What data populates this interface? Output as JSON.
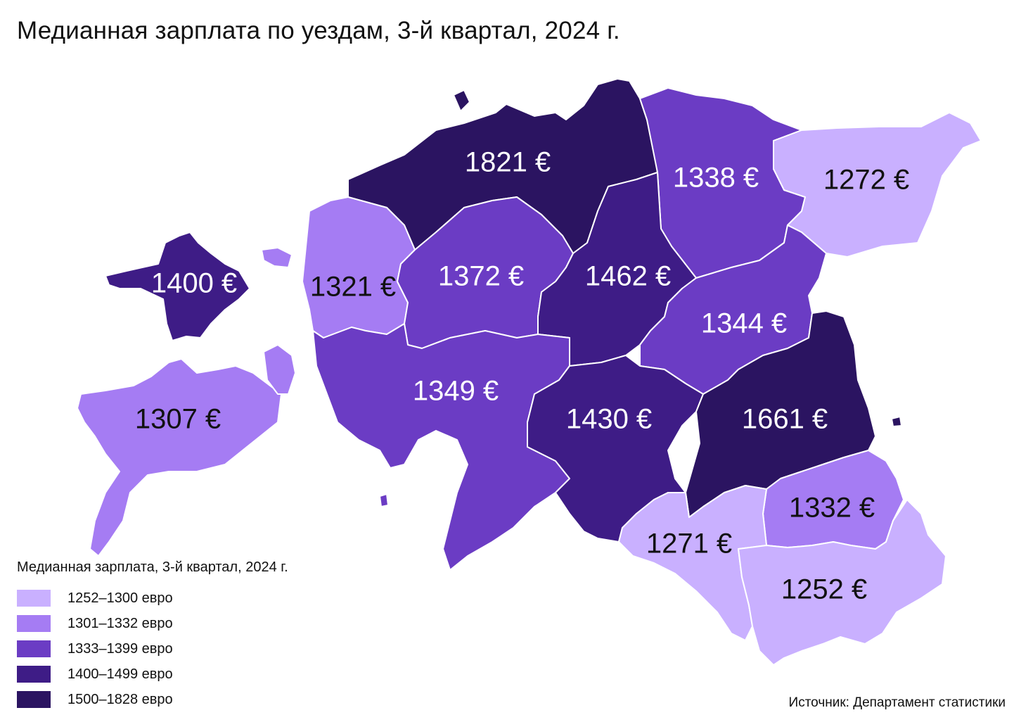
{
  "title": "Медианная зарплата по уездам, 3-й квартал, 2024 г.",
  "legend": {
    "title": "Медианная зарплата, 3-й квартал, 2024 г.",
    "items": [
      {
        "label": "1252–1300 евро",
        "color": "#c9b0ff"
      },
      {
        "label": "1301–1332 евро",
        "color": "#a57cf3"
      },
      {
        "label": "1333–1399 евро",
        "color": "#6b3cc4"
      },
      {
        "label": "1400–1499 евро",
        "color": "#3e1c86"
      },
      {
        "label": "1500–1828 евро",
        "color": "#2b1461"
      }
    ]
  },
  "regions": [
    {
      "id": "north",
      "value": 1821,
      "label": "1821 €",
      "bin": 4
    },
    {
      "id": "northeast-1",
      "value": 1338,
      "label": "1338 €",
      "bin": 2
    },
    {
      "id": "northeast-2",
      "value": 1272,
      "label": "1272 €",
      "bin": 0
    },
    {
      "id": "island-north",
      "value": 1400,
      "label": "1400 €",
      "bin": 3
    },
    {
      "id": "west",
      "value": 1321,
      "label": "1321 €",
      "bin": 1
    },
    {
      "id": "center-west",
      "value": 1372,
      "label": "1372 €",
      "bin": 2
    },
    {
      "id": "center",
      "value": 1462,
      "label": "1462 €",
      "bin": 3
    },
    {
      "id": "east-center",
      "value": 1344,
      "label": "1344 €",
      "bin": 2
    },
    {
      "id": "southwest",
      "value": 1349,
      "label": "1349 €",
      "bin": 2
    },
    {
      "id": "island-south",
      "value": 1307,
      "label": "1307 €",
      "bin": 1
    },
    {
      "id": "south-center",
      "value": 1430,
      "label": "1430 €",
      "bin": 3
    },
    {
      "id": "east",
      "value": 1661,
      "label": "1661 €",
      "bin": 4
    },
    {
      "id": "southeast-1",
      "value": 1332,
      "label": "1332 €",
      "bin": 1
    },
    {
      "id": "south-1",
      "value": 1271,
      "label": "1271 €",
      "bin": 0
    },
    {
      "id": "southeast-2",
      "value": 1252,
      "label": "1252 €",
      "bin": 0
    }
  ],
  "source": "Источник: Департамент статистики"
}
